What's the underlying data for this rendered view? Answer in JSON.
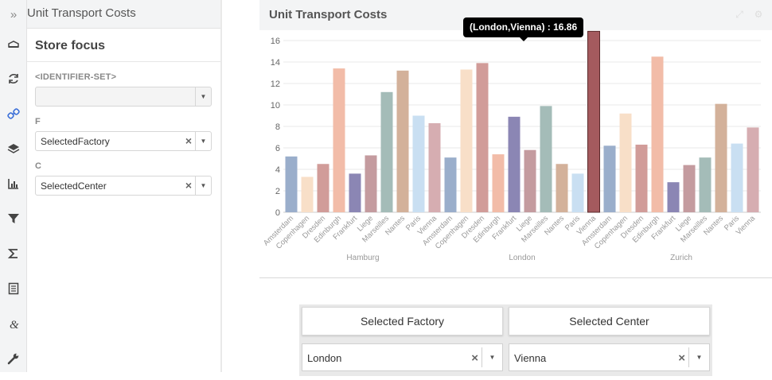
{
  "sidebar": {
    "collapse_icon": "double-chevron-right-icon",
    "icons": [
      "cube-icon",
      "refresh-icon",
      "link-icon",
      "layers-icon",
      "bar-chart-icon",
      "filter-icon",
      "sigma-icon",
      "document-icon",
      "ampersand-icon",
      "wrench-icon"
    ],
    "active_icon": "link-icon",
    "accent_color": "#3b6fd8"
  },
  "panel": {
    "header_title": "Unit Transport Costs",
    "title": "Store focus",
    "fields": [
      {
        "label": "<IDENTIFIER-SET>",
        "value": ""
      },
      {
        "label": "F",
        "value": "SelectedFactory"
      },
      {
        "label": "C",
        "value": "SelectedCenter"
      }
    ]
  },
  "card": {
    "title": "Unit Transport Costs",
    "tools": [
      "expand-icon",
      "gear-icon"
    ]
  },
  "tooltip": {
    "text": "(London,Vienna) : 16.86"
  },
  "chart_data": {
    "type": "bar",
    "ylim": [
      0,
      16
    ],
    "yticks": [
      0,
      2,
      4,
      6,
      8,
      10,
      12,
      14,
      16
    ],
    "grid": true,
    "groups": [
      {
        "name": "Hamburg",
        "categories": [
          "Amsterdam",
          "Copenhagen",
          "Dresden",
          "Edinburgh",
          "Frankfurt",
          "Liege",
          "Marseilles",
          "Nantes",
          "Paris",
          "Vienna"
        ],
        "values": [
          5.2,
          3.3,
          4.5,
          13.4,
          3.6,
          5.3,
          11.2,
          13.2,
          9.0,
          8.3
        ]
      },
      {
        "name": "London",
        "categories": [
          "Amsterdam",
          "Copenhagen",
          "Dresden",
          "Edinburgh",
          "Frankfurt",
          "Liege",
          "Marseilles",
          "Nantes",
          "Paris",
          "Vienna"
        ],
        "values": [
          5.1,
          13.3,
          13.9,
          5.4,
          8.9,
          5.8,
          9.9,
          4.5,
          3.6,
          16.86
        ]
      },
      {
        "name": "Zurich",
        "categories": [
          "Amsterdam",
          "Copenhagen",
          "Dresden",
          "Edinburgh",
          "Frankfurt",
          "Liege",
          "Marseilles",
          "Nantes",
          "Paris",
          "Vienna"
        ],
        "values": [
          6.2,
          9.2,
          6.3,
          14.5,
          2.8,
          4.4,
          5.1,
          10.1,
          6.4,
          7.9
        ]
      }
    ],
    "colors": {
      "Amsterdam": "#9aaecb",
      "Copenhagen": "#f8dfc8",
      "Dresden": "#d19c99",
      "Edinburgh": "#f2bca8",
      "Frankfurt": "#8b86b4",
      "Liege": "#c49b9f",
      "Marseilles": "#a4bcb8",
      "Nantes": "#d3b19a",
      "Paris": "#c9dff2",
      "Vienna": "#d6adb1"
    },
    "highlight": {
      "group": "London",
      "category": "Vienna",
      "color": "#a45a5e"
    }
  },
  "selectors": {
    "factory_label": "Selected Factory",
    "center_label": "Selected Center",
    "factory_value": "London",
    "center_value": "Vienna"
  }
}
